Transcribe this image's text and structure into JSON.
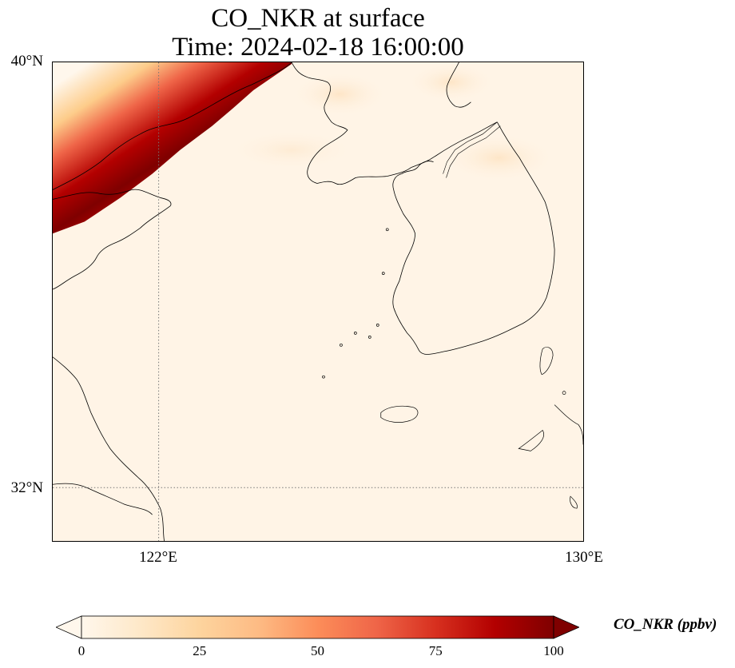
{
  "title": {
    "line1": "CO_NKR at surface",
    "line2": "Time: 2024-02-18 16:00:00"
  },
  "axes": {
    "lat_ticks": [
      {
        "label": "40°N",
        "value": 40
      },
      {
        "label": "32°N",
        "value": 32
      }
    ],
    "lon_ticks": [
      {
        "label": "122°E",
        "value": 122
      },
      {
        "label": "130°E",
        "value": 130
      }
    ],
    "lat_range": [
      31,
      40
    ],
    "lon_range": [
      120,
      130
    ],
    "gridlines": "dotted"
  },
  "colorbar": {
    "label": "CO_NKR (ppbv)",
    "ticks": [
      "0",
      "25",
      "50",
      "75",
      "100"
    ],
    "tick_values": [
      0,
      25,
      50,
      75,
      100
    ],
    "range": [
      0,
      100
    ],
    "colormap": "OrRd",
    "extend": "both",
    "colors": [
      "#fff7ec",
      "#fee8c8",
      "#fdd49e",
      "#fdbb84",
      "#fc8d59",
      "#ef6548",
      "#d7301f",
      "#b30000",
      "#7f0000"
    ]
  },
  "field": {
    "background_value": 3,
    "plume_peak_value": 100,
    "plume_location": "northwest corner (Liaoning / Bohai coast), oriented SW-NE"
  }
}
